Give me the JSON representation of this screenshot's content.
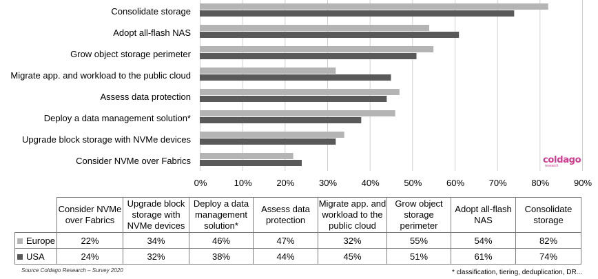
{
  "chart_data": {
    "type": "bar",
    "orientation": "horizontal",
    "categories": [
      "Consolidate storage",
      "Adopt all-flash NAS",
      "Grow object storage perimeter",
      "Migrate app. and workload to the public cloud",
      "Assess data protection",
      "Deploy a data management solution*",
      "Upgrade block storage with NVMe devices",
      "Consider NVMe over Fabrics"
    ],
    "series": [
      {
        "name": "Europe",
        "color": "#b4b4b4",
        "values": [
          82,
          54,
          55,
          32,
          47,
          46,
          34,
          22
        ]
      },
      {
        "name": "USA",
        "color": "#595959",
        "values": [
          74,
          61,
          51,
          45,
          44,
          38,
          32,
          24
        ]
      }
    ],
    "xlim": [
      0,
      90
    ],
    "xticks": [
      "0%",
      "10%",
      "20%",
      "30%",
      "40%",
      "50%",
      "60%",
      "70%",
      "80%",
      "90%"
    ],
    "grid": true,
    "legend": "data table below chart"
  },
  "logo": {
    "brand": "coldago",
    "sub": "research"
  },
  "table": {
    "headers": [
      "Consider NVMe over Fabrics",
      "Upgrade block storage with NVMe devices",
      "Deploy a data management solution*",
      "Assess data protection",
      "Migrate app. and workload to the public cloud",
      "Grow object storage perimeter",
      "Adopt all-flash NAS",
      "Consolidate storage"
    ],
    "rows": [
      {
        "label": "Europe",
        "color": "#b4b4b4",
        "values": [
          "22%",
          "34%",
          "46%",
          "47%",
          "32%",
          "55%",
          "54%",
          "82%"
        ]
      },
      {
        "label": "USA",
        "color": "#595959",
        "values": [
          "24%",
          "32%",
          "38%",
          "44%",
          "45%",
          "51%",
          "61%",
          "74%"
        ]
      }
    ]
  },
  "source": "Source Coldago Research – Survey 2020",
  "footnote": "* classification, tiering, deduplication, DR..."
}
